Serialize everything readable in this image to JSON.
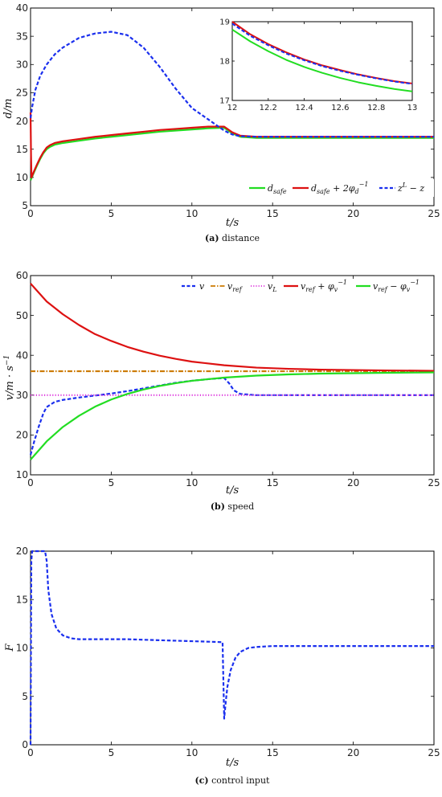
{
  "colors": {
    "green": "#22dd22",
    "red": "#dd1111",
    "blue": "#1a2fee",
    "orange": "#cc7a00",
    "magenta": "#dd33dd"
  },
  "chart_data": [
    {
      "id": "distance",
      "type": "line",
      "caption_label": "(a)",
      "caption_text": "distance",
      "xlabel": "t/s",
      "ylabel": "d/m",
      "xlim": [
        0,
        25
      ],
      "ylim": [
        5,
        40
      ],
      "xticks": [
        0,
        5,
        10,
        15,
        20,
        25
      ],
      "yticks": [
        5,
        10,
        15,
        20,
        25,
        30,
        35,
        40
      ],
      "grid": false,
      "legend": "bottom-right",
      "legend_entries": [
        "d_safe",
        "d_safe + 2φ_d^-1",
        "z^L − z"
      ],
      "series": [
        {
          "name": "d_safe",
          "style": "solid",
          "color": "green",
          "x": [
            0,
            0.2,
            0.4,
            0.6,
            0.8,
            1.0,
            1.2,
            1.5,
            2,
            3,
            4,
            5,
            6,
            7,
            8,
            9,
            10,
            11,
            12,
            12.5,
            13,
            14,
            15,
            20,
            25
          ],
          "y": [
            9.5,
            10.8,
            12.1,
            13.3,
            14.3,
            15.0,
            15.4,
            15.8,
            16.1,
            16.5,
            16.9,
            17.2,
            17.5,
            17.8,
            18.1,
            18.3,
            18.5,
            18.7,
            18.8,
            17.8,
            17.2,
            17.0,
            17.0,
            17.0,
            17.0
          ]
        },
        {
          "name": "d_safe + 2φ_d^-1",
          "style": "solid",
          "color": "red",
          "x": [
            0,
            0.03,
            0.06,
            0.2,
            0.4,
            0.6,
            0.8,
            1.0,
            1.2,
            1.5,
            2,
            3,
            4,
            5,
            6,
            7,
            8,
            9,
            10,
            11,
            12,
            12.5,
            13,
            14,
            15,
            20,
            25
          ],
          "y": [
            21.5,
            14,
            10,
            11.0,
            12.3,
            13.5,
            14.5,
            15.3,
            15.7,
            16.1,
            16.4,
            16.8,
            17.2,
            17.5,
            17.8,
            18.1,
            18.4,
            18.6,
            18.8,
            19.0,
            19.0,
            18.0,
            17.4,
            17.2,
            17.2,
            17.2,
            17.2
          ]
        },
        {
          "name": "z^L − z",
          "style": "dashed",
          "color": "blue",
          "x": [
            0,
            0.1,
            0.3,
            0.6,
            1,
            1.5,
            2,
            3,
            4,
            5,
            6,
            7,
            8,
            9,
            10,
            11,
            12,
            12.5,
            13,
            14,
            15,
            20,
            25
          ],
          "y": [
            20.5,
            22.5,
            25.5,
            28,
            30,
            31.8,
            33.0,
            34.7,
            35.5,
            35.8,
            35.2,
            33.0,
            29.6,
            25.7,
            22.3,
            20.3,
            18.3,
            17.6,
            17.3,
            17.2,
            17.2,
            17.2,
            17.2
          ]
        }
      ],
      "inset": {
        "xlim": [
          12,
          13
        ],
        "ylim": [
          17,
          19
        ],
        "xticks": [
          12,
          12.2,
          12.4,
          12.6,
          12.8,
          13
        ],
        "yticks": [
          17,
          18,
          19
        ],
        "series": [
          {
            "name": "d_safe",
            "style": "solid",
            "color": "green",
            "x": [
              12,
              12.1,
              12.2,
              12.3,
              12.4,
              12.5,
              12.6,
              12.7,
              12.8,
              12.9,
              13
            ],
            "y": [
              18.8,
              18.5,
              18.25,
              18.03,
              17.85,
              17.7,
              17.57,
              17.46,
              17.37,
              17.29,
              17.23
            ]
          },
          {
            "name": "d_safe + 2φ_d^-1",
            "style": "solid",
            "color": "red",
            "x": [
              12,
              12.1,
              12.2,
              12.3,
              12.4,
              12.5,
              12.6,
              12.7,
              12.8,
              12.9,
              13
            ],
            "y": [
              19.0,
              18.68,
              18.43,
              18.22,
              18.04,
              17.89,
              17.77,
              17.66,
              17.57,
              17.49,
              17.43
            ]
          },
          {
            "name": "z^L − z",
            "style": "dashed",
            "color": "blue",
            "x": [
              12,
              12.1,
              12.2,
              12.3,
              12.4,
              12.5,
              12.6,
              12.7,
              12.8,
              12.9,
              13
            ],
            "y": [
              18.95,
              18.64,
              18.4,
              18.19,
              18.02,
              17.87,
              17.75,
              17.65,
              17.56,
              17.48,
              17.42
            ]
          }
        ]
      }
    },
    {
      "id": "speed",
      "type": "line",
      "caption_label": "(b)",
      "caption_text": "speed",
      "xlabel": "t/s",
      "ylabel": "v/m · s^-1",
      "xlim": [
        0,
        25
      ],
      "ylim": [
        10,
        60
      ],
      "xticks": [
        0,
        5,
        10,
        15,
        20,
        25
      ],
      "yticks": [
        10,
        20,
        30,
        40,
        50,
        60
      ],
      "grid": false,
      "legend": "top-right",
      "legend_entries": [
        "v",
        "v_ref",
        "v_L",
        "v_ref + φ_v^-1",
        "v_ref − φ_v^-1"
      ],
      "series": [
        {
          "name": "v",
          "style": "dashed",
          "color": "blue",
          "x": [
            0,
            0.2,
            0.5,
            0.8,
            1,
            1.5,
            2,
            3,
            4,
            5,
            6,
            7,
            8,
            9,
            10,
            11,
            12,
            12.3,
            12.6,
            13,
            14,
            15,
            20,
            25
          ],
          "y": [
            15,
            18,
            22,
            25.5,
            27,
            28.3,
            28.8,
            29.4,
            29.9,
            30.4,
            31.0,
            31.7,
            32.4,
            33.1,
            33.6,
            34.0,
            34.3,
            33.0,
            31.2,
            30.3,
            30.0,
            30.0,
            30.0,
            30.0
          ]
        },
        {
          "name": "v_ref",
          "style": "dashdot",
          "color": "orange",
          "x": [
            0,
            25
          ],
          "y": [
            36,
            36
          ]
        },
        {
          "name": "v_L",
          "style": "dotted",
          "color": "magenta",
          "x": [
            0,
            25
          ],
          "y": [
            30,
            30
          ]
        },
        {
          "name": "v_ref + φ_v^-1",
          "style": "solid",
          "color": "red",
          "x": [
            0,
            1,
            2,
            3,
            4,
            5,
            6,
            7,
            8,
            9,
            10,
            12,
            14,
            16,
            18,
            20,
            22,
            25
          ],
          "y": [
            58.0,
            53.5,
            50.3,
            47.6,
            45.3,
            43.6,
            42.1,
            40.9,
            39.9,
            39.1,
            38.4,
            37.5,
            36.9,
            36.6,
            36.4,
            36.3,
            36.2,
            36.1
          ]
        },
        {
          "name": "v_ref − φ_v^-1",
          "style": "solid",
          "color": "green",
          "x": [
            0,
            1,
            2,
            3,
            4,
            5,
            6,
            7,
            8,
            9,
            10,
            12,
            14,
            16,
            18,
            20,
            22,
            25
          ],
          "y": [
            13.8,
            18.4,
            22.0,
            24.8,
            27.1,
            28.9,
            30.3,
            31.4,
            32.3,
            33.0,
            33.6,
            34.4,
            34.9,
            35.2,
            35.4,
            35.5,
            35.6,
            35.7
          ]
        }
      ]
    },
    {
      "id": "control",
      "type": "line",
      "caption_label": "(c)",
      "caption_text": "control input",
      "xlabel": "t/s",
      "ylabel": "F",
      "xlim": [
        0,
        25
      ],
      "ylim": [
        0,
        20
      ],
      "xticks": [
        0,
        5,
        10,
        15,
        20,
        25
      ],
      "yticks": [
        0,
        5,
        10,
        15,
        20
      ],
      "grid": false,
      "series": [
        {
          "name": "",
          "style": "dashed",
          "color": "blue",
          "x": [
            0,
            0.05,
            0.1,
            0.9,
            1.0,
            1.1,
            1.3,
            1.6,
            2,
            2.5,
            3,
            4,
            5,
            6,
            7,
            8,
            9,
            10,
            11,
            11.9,
            12.0,
            12.1,
            12.2,
            12.4,
            12.7,
            13,
            13.5,
            14,
            15,
            17,
            20,
            25
          ],
          "y": [
            0,
            19,
            20,
            20,
            19,
            16,
            13.5,
            12.0,
            11.3,
            11.0,
            10.9,
            10.9,
            10.9,
            10.9,
            10.85,
            10.8,
            10.75,
            10.7,
            10.65,
            10.6,
            2.7,
            4.5,
            6.0,
            7.7,
            9.0,
            9.6,
            10.0,
            10.1,
            10.2,
            10.2,
            10.2,
            10.2
          ]
        }
      ]
    }
  ]
}
